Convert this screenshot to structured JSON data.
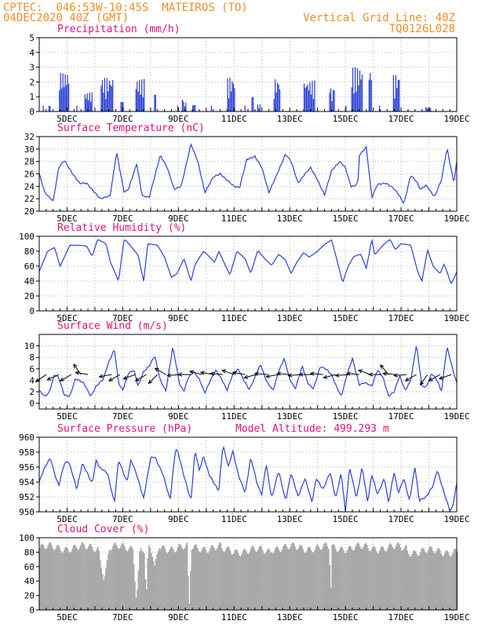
{
  "header": {
    "line1": "CPTEC:  046:53W-10:45S  MATEIROS (TO)",
    "line2": "04DEC2020 40Z (GMT)",
    "grid_note": "Vertical Grid Line: 40Z",
    "code": "TQ0126L028"
  },
  "colors": {
    "header": "#f08c28",
    "title": "#e0107a",
    "series": "#2a3fd6",
    "cloud": "#a8a8a8",
    "grid": "#b0b0b0"
  },
  "chart_data": [
    {
      "type": "bar",
      "title": "Precipitation (mm/h)",
      "x_range_days": [
        4.0,
        19.0
      ],
      "x_ticks": [
        "5DEC",
        "7DEC",
        "9DEC",
        "11DEC",
        "13DEC",
        "15DEC",
        "17DEC",
        "19DEC"
      ],
      "ylim": [
        0,
        5
      ],
      "y_ticks": [
        0,
        1,
        2,
        3,
        4,
        5
      ],
      "series": [
        {
          "values": []
        }
      ]
    },
    {
      "type": "line",
      "title": "Surface Temperature (nC)",
      "x_range_days": [
        4.0,
        19.0
      ],
      "x_ticks": [
        "5DEC",
        "7DEC",
        "9DEC",
        "11DEC",
        "13DEC",
        "15DEC",
        "17DEC",
        "19DEC"
      ],
      "ylim": [
        20,
        32
      ],
      "y_ticks": [
        20,
        22,
        24,
        26,
        28,
        30,
        32
      ],
      "series": [
        {
          "values": []
        }
      ]
    },
    {
      "type": "line",
      "title": "Relative Humidity (%)",
      "x_range_days": [
        4.0,
        19.0
      ],
      "x_ticks": [
        "5DEC",
        "7DEC",
        "9DEC",
        "11DEC",
        "13DEC",
        "15DEC",
        "17DEC",
        "19DEC"
      ],
      "ylim": [
        0,
        100
      ],
      "y_ticks": [
        0,
        20,
        40,
        60,
        80,
        100
      ],
      "series": [
        {
          "values": []
        }
      ]
    },
    {
      "type": "line",
      "title": "Surface Wind (m/s)",
      "x_range_days": [
        4.0,
        19.0
      ],
      "x_ticks": [
        "5DEC",
        "7DEC",
        "9DEC",
        "11DEC",
        "13DEC",
        "15DEC",
        "17DEC",
        "19DEC"
      ],
      "ylim": [
        -1,
        12
      ],
      "y_ticks": [
        0,
        2,
        4,
        6,
        8,
        10
      ],
      "series": [
        {
          "values": []
        }
      ],
      "wind_vectors": [
        {
          "day": 4.25,
          "angle": 215
        },
        {
          "day": 4.7,
          "angle": 205
        },
        {
          "day": 5.15,
          "angle": 210
        },
        {
          "day": 5.5,
          "angle": 125
        },
        {
          "day": 5.75,
          "angle": 170
        },
        {
          "day": 6.6,
          "angle": 190
        },
        {
          "day": 6.9,
          "angle": 210
        },
        {
          "day": 7.45,
          "angle": 200
        },
        {
          "day": 7.85,
          "angle": 210
        },
        {
          "day": 8.25,
          "angle": 225
        },
        {
          "day": 8.55,
          "angle": 150
        },
        {
          "day": 9.05,
          "angle": 185
        },
        {
          "day": 9.45,
          "angle": 180
        },
        {
          "day": 9.85,
          "angle": 165
        },
        {
          "day": 10.25,
          "angle": 170
        },
        {
          "day": 10.6,
          "angle": 175
        },
        {
          "day": 11.0,
          "angle": 160
        },
        {
          "day": 11.4,
          "angle": 170
        },
        {
          "day": 11.8,
          "angle": 195
        },
        {
          "day": 12.2,
          "angle": 175
        },
        {
          "day": 12.6,
          "angle": 190
        },
        {
          "day": 13.0,
          "angle": 175
        },
        {
          "day": 13.4,
          "angle": 185
        },
        {
          "day": 13.8,
          "angle": 180
        },
        {
          "day": 14.2,
          "angle": 175
        },
        {
          "day": 14.65,
          "angle": 195
        },
        {
          "day": 15.1,
          "angle": 185
        },
        {
          "day": 15.5,
          "angle": 175
        },
        {
          "day": 15.9,
          "angle": 160
        },
        {
          "day": 16.3,
          "angle": 180
        },
        {
          "day": 16.55,
          "angle": 130
        },
        {
          "day": 16.8,
          "angle": 175
        },
        {
          "day": 17.2,
          "angle": 185
        },
        {
          "day": 17.55,
          "angle": 210
        },
        {
          "day": 17.95,
          "angle": 235
        },
        {
          "day": 18.4,
          "angle": 210
        },
        {
          "day": 18.8,
          "angle": 200
        }
      ]
    },
    {
      "type": "line",
      "title": "Surface Pressure (hPa)",
      "annotation": "Model Altitude: 499.293 m",
      "x_range_days": [
        4.0,
        19.0
      ],
      "x_ticks": [
        "5DEC",
        "7DEC",
        "9DEC",
        "11DEC",
        "13DEC",
        "15DEC",
        "17DEC",
        "19DEC"
      ],
      "ylim": [
        950,
        960
      ],
      "y_ticks": [
        950,
        952,
        954,
        956,
        958,
        960
      ],
      "series": [
        {
          "values": []
        }
      ]
    },
    {
      "type": "bar",
      "title": "Cloud Cover (%)",
      "x_range_days": [
        4.0,
        19.0
      ],
      "x_ticks": [
        "5DEC",
        "7DEC",
        "9DEC",
        "11DEC",
        "13DEC",
        "15DEC",
        "17DEC",
        "19DEC"
      ],
      "ylim": [
        0,
        100
      ],
      "y_ticks": [
        0,
        20,
        40,
        60,
        80,
        100
      ],
      "series": [
        {
          "values": []
        }
      ]
    }
  ]
}
